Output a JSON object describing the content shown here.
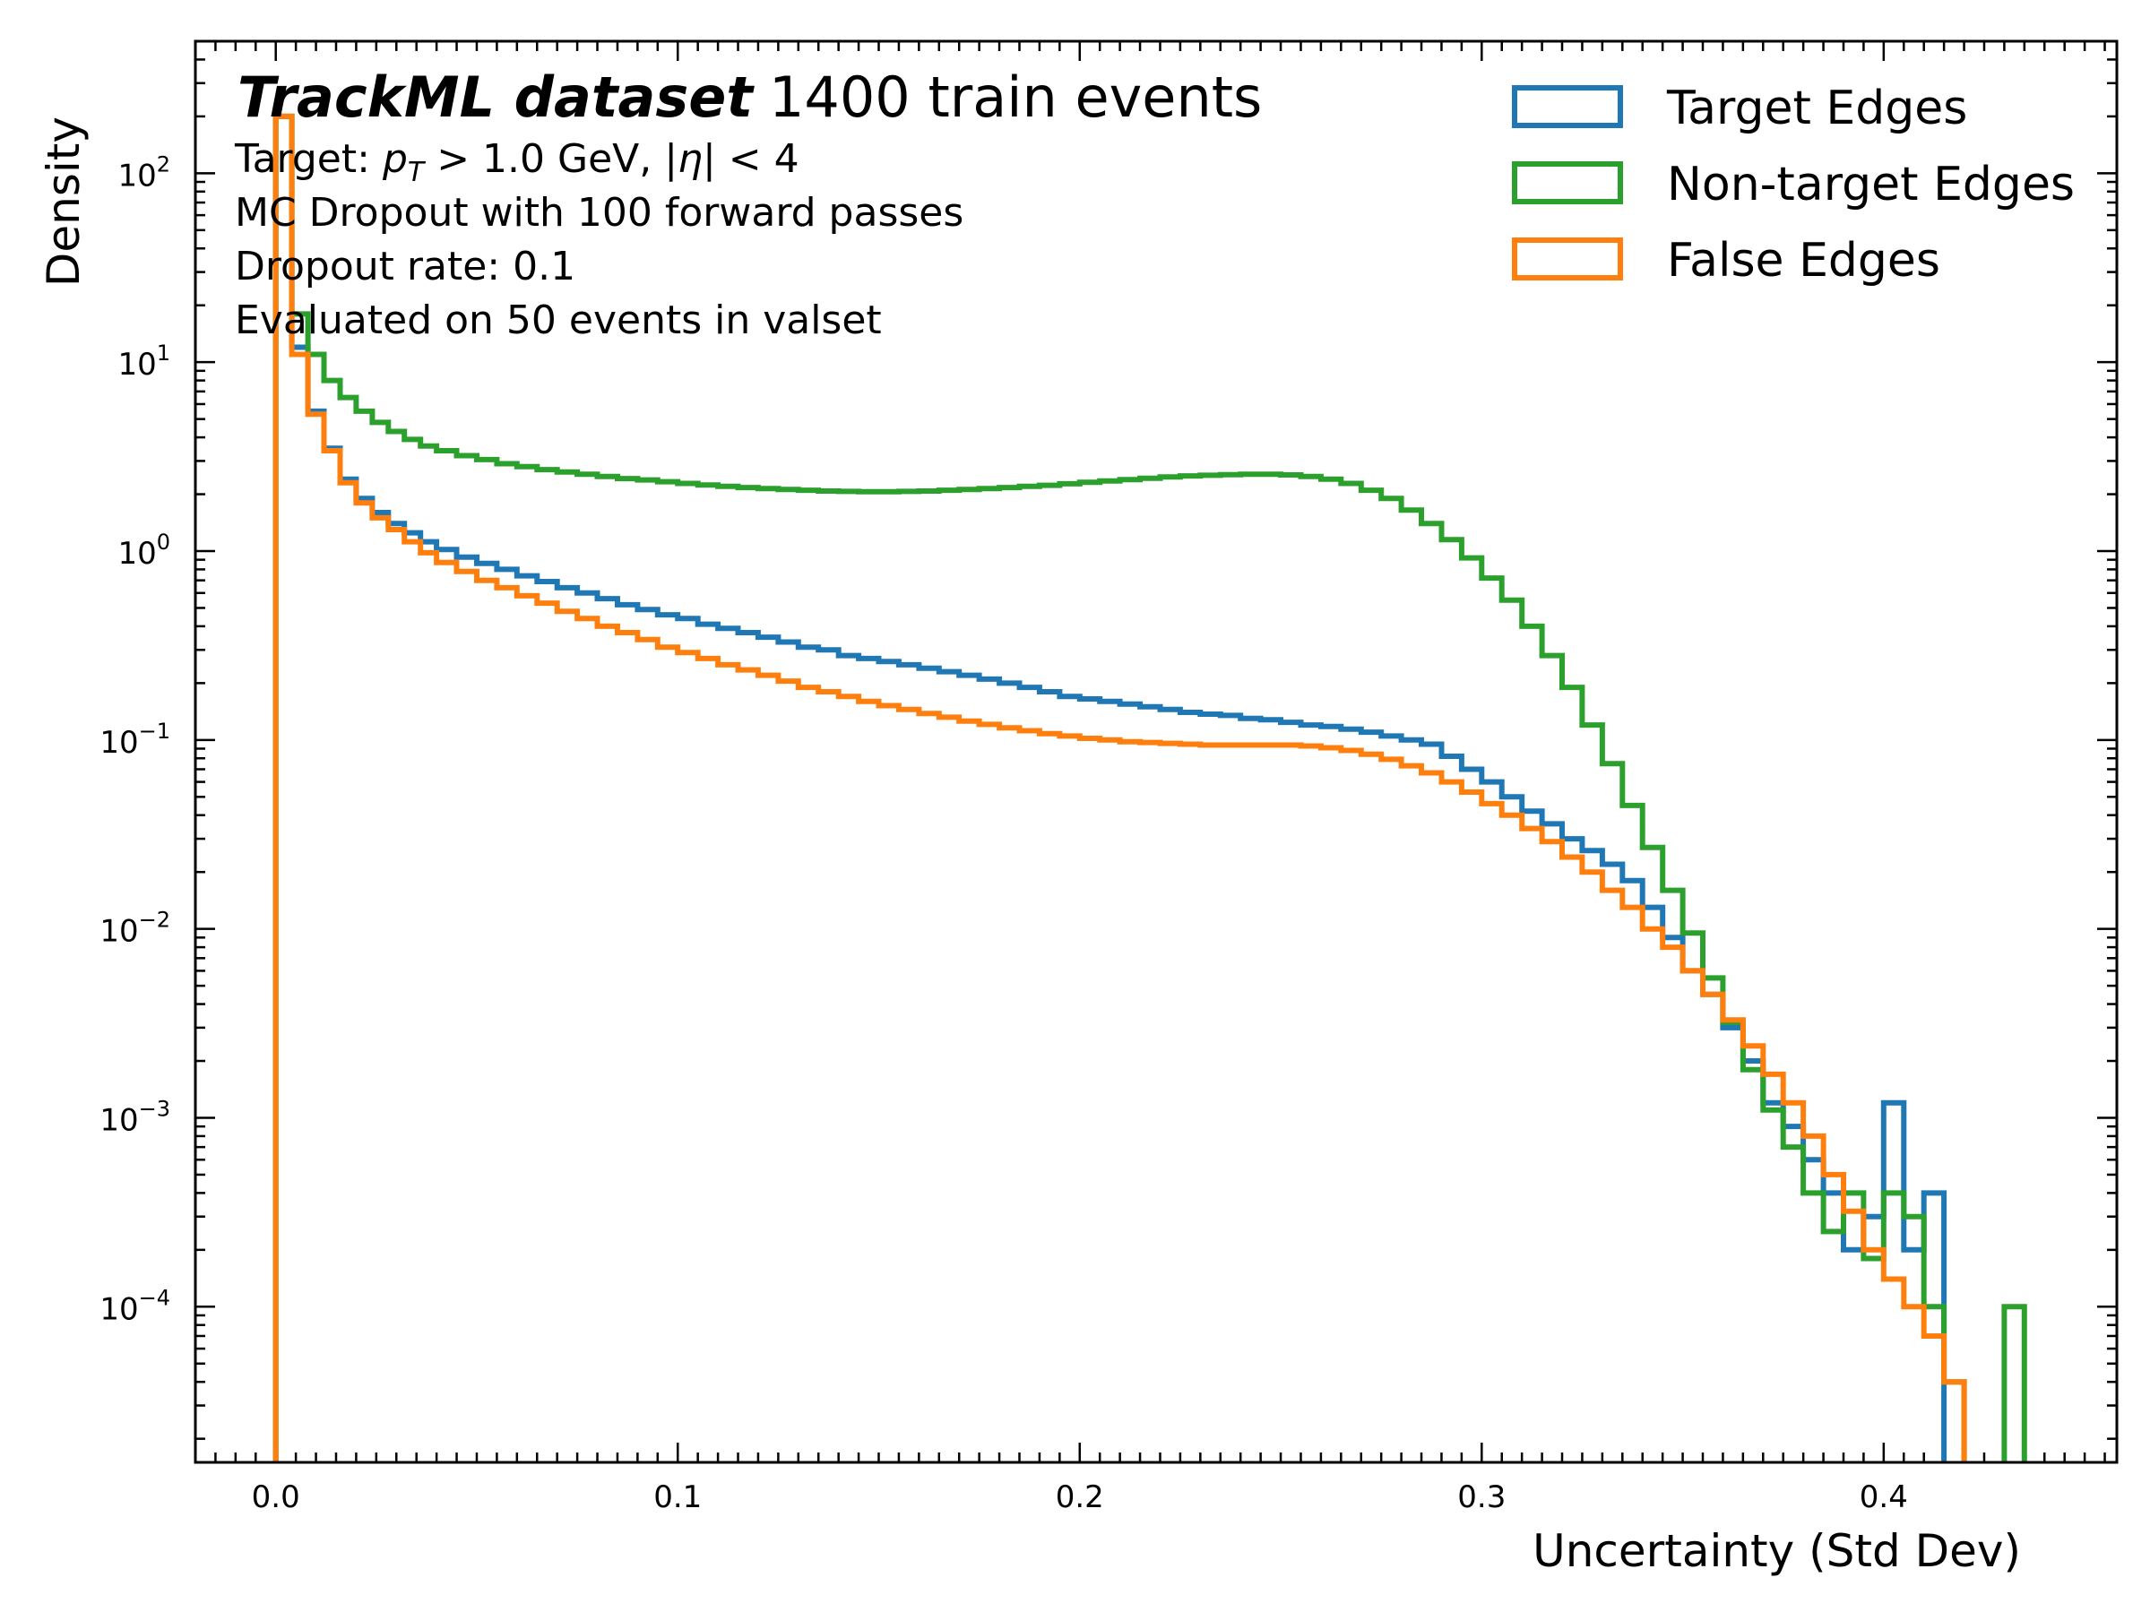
{
  "chart_data": {
    "type": "histogram-step",
    "title": {
      "bold": "TrackML dataset",
      "rest": "1400 train events"
    },
    "info_lines": [
      "MC Dropout with 100 forward passes",
      "Dropout rate: 0.1",
      "Evaluated on 50 events in valset"
    ],
    "target_line": {
      "prefix": "Target: ",
      "pt_symbol": "p",
      "pt_sub": "T",
      "pt_cut": " > 1.0 GeV, |",
      "eta_symbol": "η",
      "eta_cut": "| < 4"
    },
    "xlabel": "Uncertainty (Std Dev)",
    "ylabel": "Density",
    "yscale": "log",
    "xlim": [
      -0.02,
      0.458
    ],
    "ylim": [
      1.5e-05,
      500
    ],
    "xticks": [
      0.0,
      0.1,
      0.2,
      0.3,
      0.4
    ],
    "xtick_labels": [
      "0.0",
      "0.1",
      "0.2",
      "0.3",
      "0.4"
    ],
    "yticks": [
      {
        "value": 100,
        "base": "10",
        "exp": "2"
      },
      {
        "value": 10,
        "base": "10",
        "exp": "1"
      },
      {
        "value": 1,
        "base": "10",
        "exp": "0"
      },
      {
        "value": 0.1,
        "base": "10",
        "exp": "−1"
      },
      {
        "value": 0.01,
        "base": "10",
        "exp": "−2"
      },
      {
        "value": 0.001,
        "base": "10",
        "exp": "−3"
      },
      {
        "value": 0.0001,
        "base": "10",
        "exp": "−4"
      }
    ],
    "legend_position": "top-right",
    "series": [
      {
        "name": "Target Edges",
        "color": "#1f77b4",
        "points": [
          [
            0.0,
            200
          ],
          [
            0.004,
            12
          ],
          [
            0.008,
            5.5
          ],
          [
            0.012,
            3.5
          ],
          [
            0.016,
            2.4
          ],
          [
            0.02,
            1.9
          ],
          [
            0.024,
            1.6
          ],
          [
            0.028,
            1.4
          ],
          [
            0.032,
            1.25
          ],
          [
            0.036,
            1.12
          ],
          [
            0.04,
            1.02
          ],
          [
            0.045,
            0.93
          ],
          [
            0.05,
            0.86
          ],
          [
            0.055,
            0.8
          ],
          [
            0.06,
            0.74
          ],
          [
            0.065,
            0.69
          ],
          [
            0.07,
            0.64
          ],
          [
            0.075,
            0.6
          ],
          [
            0.08,
            0.56
          ],
          [
            0.085,
            0.52
          ],
          [
            0.09,
            0.49
          ],
          [
            0.095,
            0.46
          ],
          [
            0.1,
            0.44
          ],
          [
            0.105,
            0.41
          ],
          [
            0.11,
            0.39
          ],
          [
            0.115,
            0.37
          ],
          [
            0.12,
            0.35
          ],
          [
            0.125,
            0.33
          ],
          [
            0.13,
            0.31
          ],
          [
            0.135,
            0.3
          ],
          [
            0.14,
            0.28
          ],
          [
            0.145,
            0.27
          ],
          [
            0.15,
            0.26
          ],
          [
            0.155,
            0.25
          ],
          [
            0.16,
            0.24
          ],
          [
            0.165,
            0.23
          ],
          [
            0.17,
            0.22
          ],
          [
            0.175,
            0.21
          ],
          [
            0.18,
            0.2
          ],
          [
            0.185,
            0.19
          ],
          [
            0.19,
            0.18
          ],
          [
            0.195,
            0.17
          ],
          [
            0.2,
            0.165
          ],
          [
            0.205,
            0.16
          ],
          [
            0.21,
            0.155
          ],
          [
            0.215,
            0.15
          ],
          [
            0.22,
            0.145
          ],
          [
            0.225,
            0.14
          ],
          [
            0.23,
            0.137
          ],
          [
            0.235,
            0.135
          ],
          [
            0.24,
            0.13
          ],
          [
            0.245,
            0.128
          ],
          [
            0.25,
            0.124
          ],
          [
            0.255,
            0.12
          ],
          [
            0.26,
            0.118
          ],
          [
            0.265,
            0.114
          ],
          [
            0.27,
            0.11
          ],
          [
            0.275,
            0.105
          ],
          [
            0.28,
            0.1
          ],
          [
            0.285,
            0.095
          ],
          [
            0.29,
            0.082
          ],
          [
            0.295,
            0.07
          ],
          [
            0.3,
            0.06
          ],
          [
            0.305,
            0.05
          ],
          [
            0.31,
            0.042
          ],
          [
            0.315,
            0.036
          ],
          [
            0.32,
            0.03
          ],
          [
            0.325,
            0.026
          ],
          [
            0.33,
            0.022
          ],
          [
            0.335,
            0.018
          ],
          [
            0.34,
            0.013
          ],
          [
            0.345,
            0.009
          ],
          [
            0.35,
            0.006
          ],
          [
            0.355,
            0.0045
          ],
          [
            0.36,
            0.003
          ],
          [
            0.365,
            0.002
          ],
          [
            0.37,
            0.0012
          ],
          [
            0.375,
            0.0009
          ],
          [
            0.38,
            0.0006
          ],
          [
            0.385,
            0.0004
          ],
          [
            0.39,
            0.0002
          ],
          [
            0.395,
            0.0003
          ],
          [
            0.4,
            0.0012
          ],
          [
            0.405,
            0.0002
          ],
          [
            0.41,
            0.0004
          ],
          [
            0.415,
            1e-05
          ]
        ]
      },
      {
        "name": "Non-target Edges",
        "color": "#2ca02c",
        "points": [
          [
            0.0,
            200
          ],
          [
            0.004,
            18
          ],
          [
            0.008,
            11
          ],
          [
            0.012,
            8
          ],
          [
            0.016,
            6.5
          ],
          [
            0.02,
            5.5
          ],
          [
            0.024,
            4.8
          ],
          [
            0.028,
            4.3
          ],
          [
            0.032,
            3.9
          ],
          [
            0.036,
            3.6
          ],
          [
            0.04,
            3.4
          ],
          [
            0.045,
            3.2
          ],
          [
            0.05,
            3.05
          ],
          [
            0.055,
            2.9
          ],
          [
            0.06,
            2.8
          ],
          [
            0.065,
            2.7
          ],
          [
            0.07,
            2.62
          ],
          [
            0.075,
            2.55
          ],
          [
            0.08,
            2.48
          ],
          [
            0.085,
            2.42
          ],
          [
            0.09,
            2.38
          ],
          [
            0.095,
            2.33
          ],
          [
            0.1,
            2.28
          ],
          [
            0.105,
            2.24
          ],
          [
            0.11,
            2.2
          ],
          [
            0.115,
            2.17
          ],
          [
            0.12,
            2.14
          ],
          [
            0.125,
            2.12
          ],
          [
            0.13,
            2.1
          ],
          [
            0.135,
            2.08
          ],
          [
            0.14,
            2.07
          ],
          [
            0.145,
            2.06
          ],
          [
            0.15,
            2.06
          ],
          [
            0.155,
            2.07
          ],
          [
            0.16,
            2.08
          ],
          [
            0.165,
            2.1
          ],
          [
            0.17,
            2.12
          ],
          [
            0.175,
            2.14
          ],
          [
            0.18,
            2.17
          ],
          [
            0.185,
            2.2
          ],
          [
            0.19,
            2.23
          ],
          [
            0.195,
            2.27
          ],
          [
            0.2,
            2.31
          ],
          [
            0.205,
            2.35
          ],
          [
            0.21,
            2.39
          ],
          [
            0.215,
            2.43
          ],
          [
            0.22,
            2.47
          ],
          [
            0.225,
            2.5
          ],
          [
            0.23,
            2.52
          ],
          [
            0.235,
            2.54
          ],
          [
            0.24,
            2.55
          ],
          [
            0.245,
            2.55
          ],
          [
            0.25,
            2.53
          ],
          [
            0.255,
            2.48
          ],
          [
            0.26,
            2.4
          ],
          [
            0.265,
            2.28
          ],
          [
            0.27,
            2.1
          ],
          [
            0.275,
            1.9
          ],
          [
            0.28,
            1.65
          ],
          [
            0.285,
            1.4
          ],
          [
            0.29,
            1.15
          ],
          [
            0.295,
            0.92
          ],
          [
            0.3,
            0.72
          ],
          [
            0.305,
            0.55
          ],
          [
            0.31,
            0.4
          ],
          [
            0.315,
            0.28
          ],
          [
            0.32,
            0.19
          ],
          [
            0.325,
            0.12
          ],
          [
            0.33,
            0.075
          ],
          [
            0.335,
            0.045
          ],
          [
            0.34,
            0.027
          ],
          [
            0.345,
            0.016
          ],
          [
            0.35,
            0.0095
          ],
          [
            0.355,
            0.0055
          ],
          [
            0.36,
            0.0032
          ],
          [
            0.365,
            0.0018
          ],
          [
            0.37,
            0.0011
          ],
          [
            0.375,
            0.0007
          ],
          [
            0.38,
            0.0004
          ],
          [
            0.385,
            0.00025
          ],
          [
            0.39,
            0.0004
          ],
          [
            0.395,
            0.00018
          ],
          [
            0.4,
            0.0004
          ],
          [
            0.405,
            0.0003
          ],
          [
            0.41,
            0.0001
          ],
          [
            0.415,
            4e-05
          ],
          [
            0.42,
            1e-05
          ],
          [
            0.425,
            1e-05
          ],
          [
            0.43,
            0.0001
          ],
          [
            0.435,
            1e-05
          ]
        ]
      },
      {
        "name": "False Edges",
        "color": "#ff7f0e",
        "points": [
          [
            0.0,
            200
          ],
          [
            0.004,
            11
          ],
          [
            0.008,
            5.3
          ],
          [
            0.012,
            3.4
          ],
          [
            0.016,
            2.3
          ],
          [
            0.02,
            1.8
          ],
          [
            0.024,
            1.5
          ],
          [
            0.028,
            1.3
          ],
          [
            0.032,
            1.12
          ],
          [
            0.036,
            0.98
          ],
          [
            0.04,
            0.87
          ],
          [
            0.045,
            0.78
          ],
          [
            0.05,
            0.7
          ],
          [
            0.055,
            0.64
          ],
          [
            0.06,
            0.58
          ],
          [
            0.065,
            0.53
          ],
          [
            0.07,
            0.48
          ],
          [
            0.075,
            0.44
          ],
          [
            0.08,
            0.4
          ],
          [
            0.085,
            0.37
          ],
          [
            0.09,
            0.34
          ],
          [
            0.095,
            0.31
          ],
          [
            0.1,
            0.29
          ],
          [
            0.105,
            0.27
          ],
          [
            0.11,
            0.25
          ],
          [
            0.115,
            0.235
          ],
          [
            0.12,
            0.22
          ],
          [
            0.125,
            0.205
          ],
          [
            0.13,
            0.19
          ],
          [
            0.135,
            0.18
          ],
          [
            0.14,
            0.17
          ],
          [
            0.145,
            0.16
          ],
          [
            0.15,
            0.152
          ],
          [
            0.155,
            0.145
          ],
          [
            0.16,
            0.138
          ],
          [
            0.165,
            0.132
          ],
          [
            0.17,
            0.126
          ],
          [
            0.175,
            0.121
          ],
          [
            0.18,
            0.116
          ],
          [
            0.185,
            0.112
          ],
          [
            0.19,
            0.108
          ],
          [
            0.195,
            0.105
          ],
          [
            0.2,
            0.102
          ],
          [
            0.205,
            0.1
          ],
          [
            0.21,
            0.098
          ],
          [
            0.215,
            0.097
          ],
          [
            0.22,
            0.096
          ],
          [
            0.225,
            0.095
          ],
          [
            0.23,
            0.094
          ],
          [
            0.235,
            0.094
          ],
          [
            0.24,
            0.094
          ],
          [
            0.245,
            0.094
          ],
          [
            0.25,
            0.094
          ],
          [
            0.255,
            0.093
          ],
          [
            0.26,
            0.091
          ],
          [
            0.265,
            0.088
          ],
          [
            0.27,
            0.084
          ],
          [
            0.275,
            0.079
          ],
          [
            0.28,
            0.073
          ],
          [
            0.285,
            0.067
          ],
          [
            0.29,
            0.06
          ],
          [
            0.295,
            0.053
          ],
          [
            0.3,
            0.046
          ],
          [
            0.305,
            0.04
          ],
          [
            0.31,
            0.034
          ],
          [
            0.315,
            0.029
          ],
          [
            0.32,
            0.024
          ],
          [
            0.325,
            0.02
          ],
          [
            0.33,
            0.016
          ],
          [
            0.335,
            0.013
          ],
          [
            0.34,
            0.01
          ],
          [
            0.345,
            0.008
          ],
          [
            0.35,
            0.006
          ],
          [
            0.355,
            0.0045
          ],
          [
            0.36,
            0.0033
          ],
          [
            0.365,
            0.0024
          ],
          [
            0.37,
            0.0017
          ],
          [
            0.375,
            0.0012
          ],
          [
            0.38,
            0.0008
          ],
          [
            0.385,
            0.0005
          ],
          [
            0.39,
            0.00032
          ],
          [
            0.395,
            0.0002
          ],
          [
            0.4,
            0.00014
          ],
          [
            0.405,
            0.0001
          ],
          [
            0.41,
            7e-05
          ],
          [
            0.415,
            4e-05
          ],
          [
            0.42,
            1e-05
          ]
        ]
      }
    ]
  }
}
